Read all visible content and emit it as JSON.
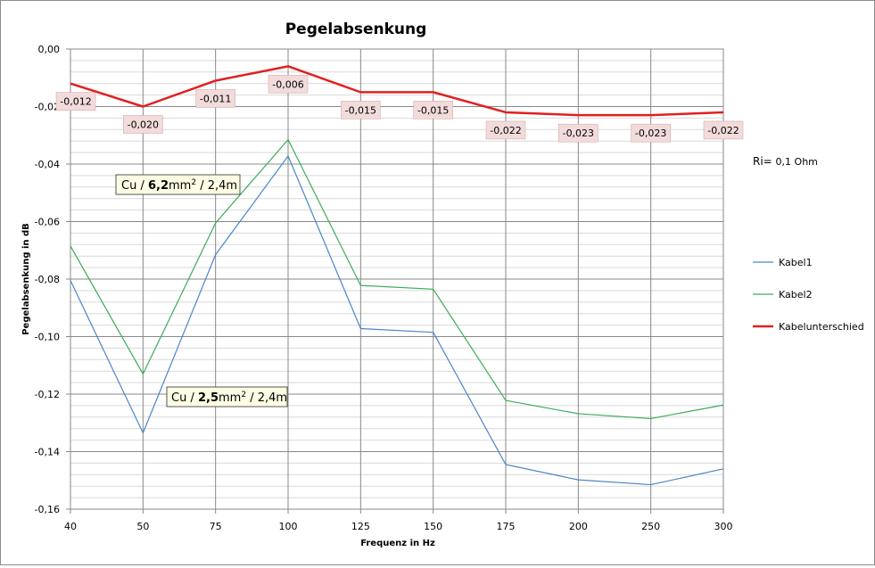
{
  "chart_data": {
    "type": "line",
    "title": "Pegelabsenkung",
    "xlabel": "Frequenz in Hz",
    "ylabel": "Pegelabsenkung in dB",
    "categories": [
      "40",
      "50",
      "75",
      "100",
      "125",
      "150",
      "175",
      "200",
      "250",
      "300"
    ],
    "ylim": [
      -0.16,
      0.0
    ],
    "y_ticks": [
      "0,00",
      "-0,02",
      "-0,04",
      "-0,06",
      "-0,08",
      "-0,10",
      "-0,12",
      "-0,14",
      "-0,16"
    ],
    "grid": true,
    "legend_position": "right",
    "series": [
      {
        "name": "Kabel1",
        "color": "#4a86c8",
        "values": [
          -0.0805,
          -0.1335,
          -0.0715,
          -0.0372,
          -0.0972,
          -0.0985,
          -0.1445,
          -0.1498,
          -0.1515,
          -0.146
        ]
      },
      {
        "name": "Kabel2",
        "color": "#3cab5a",
        "values": [
          -0.0685,
          -0.113,
          -0.0605,
          -0.0315,
          -0.0822,
          -0.0835,
          -0.1222,
          -0.1268,
          -0.1285,
          -0.1238
        ]
      },
      {
        "name": "Kabelunterschied",
        "color": "#e02020",
        "values": [
          -0.012,
          -0.02,
          -0.011,
          -0.006,
          -0.015,
          -0.015,
          -0.022,
          -0.023,
          -0.023,
          -0.022
        ],
        "data_labels": [
          "-0,012",
          "-0,020",
          "-0,011",
          "-0,006",
          "-0,015",
          "-0,015",
          "-0,022",
          "-0,023",
          "-0,023",
          "-0,022"
        ]
      }
    ],
    "annotations": {
      "upper_cable": {
        "prefix": "Cu / ",
        "bold": "6,2",
        "unit": "mm",
        "sup": "2",
        "suffix": " / 2,4m"
      },
      "lower_cable": {
        "prefix": "Cu / ",
        "bold": "2,5",
        "unit": "mm",
        "sup": "2",
        "suffix": " / 2,4m"
      },
      "ri": {
        "prefix": "Ri= ",
        "value": "0,1",
        "unit": " Ohm"
      }
    }
  },
  "colors": {
    "label_box_fill": "#f2dcdb",
    "annotation_box_fill": "#fdfde4",
    "major_grid": "#888888",
    "minor_grid": "#d9d9d9"
  }
}
